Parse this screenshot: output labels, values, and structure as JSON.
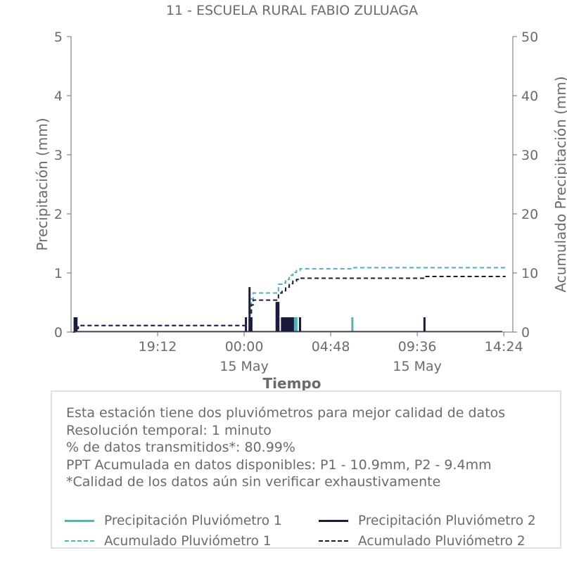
{
  "chart_data": {
    "type": "line",
    "title": "11 - ESCUELA RURAL FABIO ZULUAGA",
    "xlabel": "Tiempo",
    "ylabel_left": "Precipitación (mm)",
    "ylabel_right": "Acumulado Precipitación (mm)",
    "ylim_left": [
      0,
      5
    ],
    "ylim_right": [
      0,
      50
    ],
    "yticks_left": [
      "0",
      "1",
      "2",
      "3",
      "4",
      "5"
    ],
    "yticks_right": [
      "0",
      "10",
      "20",
      "30",
      "40",
      "50"
    ],
    "xlim": [
      "2024-05-14 14:24",
      "2024-05-15 14:54"
    ],
    "xticks": [
      {
        "x": "2024-05-14 19:12",
        "label": "19:12",
        "sublabel": ""
      },
      {
        "x": "2024-05-15 00:00",
        "label": "00:00",
        "sublabel": "15 May"
      },
      {
        "x": "2024-05-15 04:48",
        "label": "04:48",
        "sublabel": ""
      },
      {
        "x": "2024-05-15 09:36",
        "label": "09:36",
        "sublabel": "15 May"
      },
      {
        "x": "2024-05-15 14:24",
        "label": "14:24",
        "sublabel": ""
      }
    ],
    "grid": false,
    "legend_position": "bottom",
    "series": [
      {
        "name": "Precipitación Pluviómetro 1",
        "axis": "left",
        "style": "solid",
        "color": "#4fb3b8",
        "x": [
          "2024-05-14 14:36",
          "2024-05-14 14:42",
          "2024-05-15 00:18",
          "2024-05-15 00:24",
          "2024-05-15 01:54",
          "2024-05-15 02:06",
          "2024-05-15 02:12",
          "2024-05-15 02:18",
          "2024-05-15 02:24",
          "2024-05-15 02:30",
          "2024-05-15 02:36",
          "2024-05-15 02:42",
          "2024-05-15 02:48",
          "2024-05-15 02:54",
          "2024-05-15 03:06",
          "2024-05-15 06:00"
        ],
        "y": [
          0.25,
          0.25,
          0.25,
          0.25,
          0.25,
          0.25,
          0.25,
          0.25,
          0.25,
          0.25,
          0.25,
          0.25,
          0.25,
          0.25,
          0.25,
          0.25
        ]
      },
      {
        "name": "Precipitación Pluviómetro 2",
        "axis": "left",
        "style": "solid",
        "color": "#1a1a3e",
        "x": [
          "2024-05-14 14:36",
          "2024-05-14 14:42",
          "2024-05-15 00:06",
          "2024-05-15 00:18",
          "2024-05-15 00:24",
          "2024-05-15 01:48",
          "2024-05-15 01:54",
          "2024-05-15 02:06",
          "2024-05-15 02:12",
          "2024-05-15 02:18",
          "2024-05-15 02:24",
          "2024-05-15 02:30",
          "2024-05-15 02:36",
          "2024-05-15 02:42",
          "2024-05-15 03:06",
          "2024-05-15 10:00"
        ],
        "y": [
          0.25,
          0.25,
          0.25,
          0.76,
          0.25,
          0.51,
          0.51,
          0.25,
          0.25,
          0.25,
          0.25,
          0.25,
          0.25,
          0.25,
          0.25,
          0.25
        ]
      },
      {
        "name": "Acumulado Pluviómetro 1",
        "axis": "right",
        "style": "dashed",
        "color": "#4fb3b8",
        "x": [
          "2024-05-14 14:30",
          "2024-05-14 14:36",
          "2024-05-14 14:42",
          "2024-05-14 14:48",
          "2024-05-15 00:06",
          "2024-05-15 00:18",
          "2024-05-15 00:24",
          "2024-05-15 00:30",
          "2024-05-15 01:48",
          "2024-05-15 01:54",
          "2024-05-15 02:06",
          "2024-05-15 02:18",
          "2024-05-15 02:30",
          "2024-05-15 02:42",
          "2024-05-15 02:54",
          "2024-05-15 03:06",
          "2024-05-15 05:54",
          "2024-05-15 06:00",
          "2024-05-15 14:30"
        ],
        "y": [
          0.0,
          0.3,
          0.6,
          1.1,
          1.1,
          3.2,
          5.6,
          6.6,
          6.6,
          8.1,
          8.3,
          8.9,
          9.6,
          10.1,
          10.4,
          10.7,
          10.7,
          10.9,
          10.9
        ]
      },
      {
        "name": "Acumulado Pluviómetro 2",
        "axis": "right",
        "style": "dashed",
        "color": "#1a1a3e",
        "x": [
          "2024-05-14 14:30",
          "2024-05-14 14:36",
          "2024-05-14 14:42",
          "2024-05-14 14:48",
          "2024-05-15 00:06",
          "2024-05-15 00:18",
          "2024-05-15 00:24",
          "2024-05-15 00:30",
          "2024-05-15 01:48",
          "2024-05-15 01:54",
          "2024-05-15 02:06",
          "2024-05-15 02:18",
          "2024-05-15 02:30",
          "2024-05-15 02:42",
          "2024-05-15 02:54",
          "2024-05-15 03:06",
          "2024-05-15 09:54",
          "2024-05-15 10:00",
          "2024-05-15 14:30"
        ],
        "y": [
          0.0,
          0.3,
          0.6,
          1.1,
          1.1,
          2.8,
          4.6,
          5.4,
          5.4,
          6.6,
          7.0,
          7.6,
          8.2,
          8.6,
          8.9,
          9.1,
          9.1,
          9.4,
          9.4
        ]
      }
    ]
  },
  "info": {
    "lines": [
      "Esta estación tiene dos pluviómetros para mejor calidad de datos",
      "Resolución temporal: 1 minuto",
      "% de datos transmitidos*: 80.99%",
      "PPT Acumulada en datos disponibles: P1 - 10.9mm, P2 - 9.4mm",
      "*Calidad de los datos aún sin verificar exhaustivamente"
    ]
  },
  "legend": [
    {
      "label": "Precipitación Pluviómetro 1",
      "color": "#4fb3b8",
      "style": "solid"
    },
    {
      "label": "Precipitación Pluviómetro 2",
      "color": "#1a1a3e",
      "style": "solid"
    },
    {
      "label": "Acumulado Pluviómetro 1",
      "color": "#4fb3b8",
      "style": "dashed"
    },
    {
      "label": "Acumulado Pluviómetro 2",
      "color": "#1a1a3e",
      "style": "dashed"
    }
  ]
}
